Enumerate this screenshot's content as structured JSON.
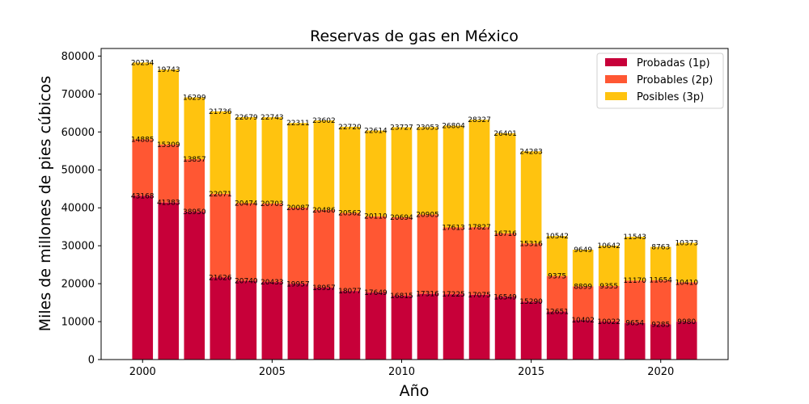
{
  "chart_data": {
    "type": "bar",
    "stacked": true,
    "title": "Reservas de gas en México",
    "xlabel": "Año",
    "ylabel": "Miles de millones de pies cúbicos",
    "x": [
      2000,
      2001,
      2002,
      2003,
      2004,
      2005,
      2006,
      2007,
      2008,
      2009,
      2010,
      2011,
      2012,
      2013,
      2014,
      2015,
      2016,
      2017,
      2018,
      2019,
      2020,
      2021
    ],
    "xticks": [
      2000,
      2005,
      2010,
      2015,
      2020
    ],
    "ylim": [
      0,
      82000
    ],
    "xlim": [
      1998.4,
      2022.6
    ],
    "yticks": [
      0,
      10000,
      20000,
      30000,
      40000,
      50000,
      60000,
      70000,
      80000
    ],
    "grid": false,
    "legend_position": "top-right",
    "series": [
      {
        "name": "Probadas (1p)",
        "color": "#c70039",
        "values": [
          43168,
          41383,
          38950,
          21626,
          20740,
          20433,
          19957,
          18957,
          18077,
          17649,
          16815,
          17316,
          17225,
          17075,
          16549,
          15290,
          12651,
          10402,
          10022,
          9654,
          9285,
          9980
        ]
      },
      {
        "name": "Probables (2p)",
        "color": "#ff5733",
        "values": [
          14885,
          15309,
          13857,
          22071,
          20474,
          20703,
          20087,
          20486,
          20562,
          20110,
          20694,
          20905,
          17613,
          17827,
          16716,
          15316,
          9375,
          8899,
          9355,
          11170,
          11654,
          10410
        ]
      },
      {
        "name": "Posibles (3p)",
        "color": "#ffc30f",
        "values": [
          20234,
          19743,
          16299,
          21736,
          22679,
          22743,
          22311,
          23602,
          22720,
          22614,
          23727,
          23053,
          26804,
          28327,
          26401,
          24283,
          10542,
          9649,
          10642,
          11543,
          8763,
          10373
        ]
      }
    ]
  }
}
